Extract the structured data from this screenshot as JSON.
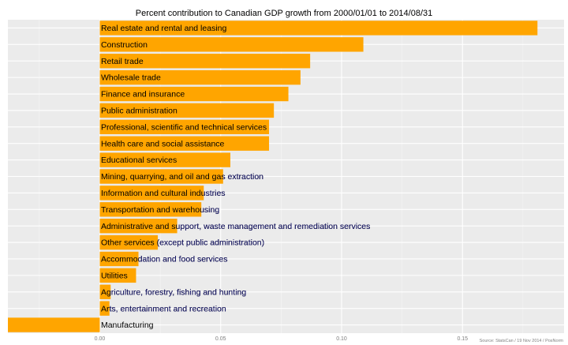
{
  "chart_data": {
    "type": "bar",
    "orientation": "horizontal",
    "title": "Percent contribution to Canadian GDP growth from 2000/01/01 to 2014/08/31",
    "xlabel": "",
    "ylabel": "",
    "xlim": [
      -0.038,
      0.192
    ],
    "x_ticks": [
      0.0,
      0.05,
      0.1,
      0.15
    ],
    "x_tick_labels": [
      "0.00",
      "0.05",
      "0.10",
      "0.15"
    ],
    "grid": true,
    "bar_color": "#FFA500",
    "label_color": "#000000",
    "label_outside_color": "#1A1A6E",
    "background_color": "#EBEBEB",
    "categories": [
      "Real estate and rental and leasing",
      "Construction",
      "Retail trade",
      "Wholesale trade",
      "Finance and insurance",
      "Public administration",
      "Professional, scientific and technical services",
      "Health care and social assistance",
      "Educational services",
      "Mining, quarrying, and oil and gas extraction",
      "Information and cultural industries",
      "Transportation and warehousing",
      "Administrative and support, waste management and remediation services",
      "Other services (except public administration)",
      "Accommodation and food services",
      "Utilities",
      "Agriculture, forestry, fishing and hunting",
      "Arts, entertainment and recreation",
      "Manufacturing"
    ],
    "values": [
      0.181,
      0.109,
      0.087,
      0.083,
      0.078,
      0.072,
      0.07,
      0.07,
      0.054,
      0.051,
      0.043,
      0.042,
      0.032,
      0.024,
      0.016,
      0.015,
      0.0045,
      0.004,
      -0.038
    ],
    "source_note": "Source: StatsCan / 19 Nov 2014 / PosNorm"
  }
}
